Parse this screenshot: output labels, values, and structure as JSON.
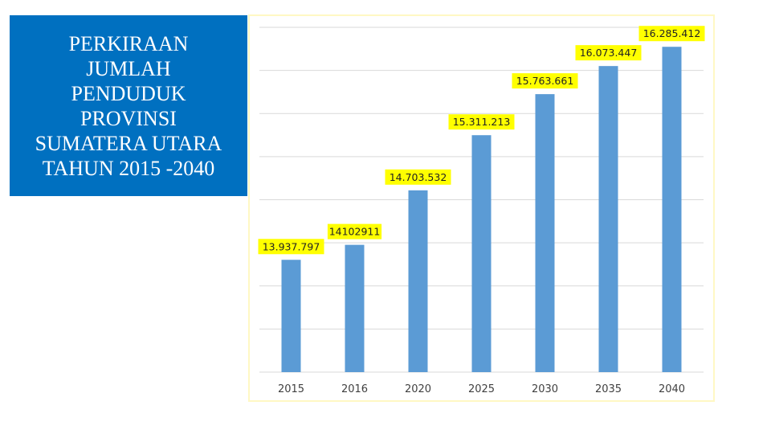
{
  "title": {
    "text": "PERKIRAAN\nJUMLAH\nPENDUDUK\nPROVINSI\nSUMATERA UTARA\nTAHUN  2015 -2040"
  },
  "chart_data": {
    "type": "bar",
    "categories": [
      "2015",
      "2016",
      "2020",
      "2025",
      "2030",
      "2035",
      "2040"
    ],
    "values": [
      13937797,
      14102911,
      14703532,
      15311213,
      15763661,
      16073447,
      16285412
    ],
    "data_labels": [
      "13.937.797",
      "14102911",
      "14.703.532",
      "15.311.213",
      "15.763.661",
      "16.073.447",
      "16.285.412"
    ],
    "ylim": [
      12700000,
      16500000
    ],
    "grid": true,
    "legend": "none",
    "bar_color": "#5b9bd5",
    "label_bg_color": "#ffff00"
  }
}
